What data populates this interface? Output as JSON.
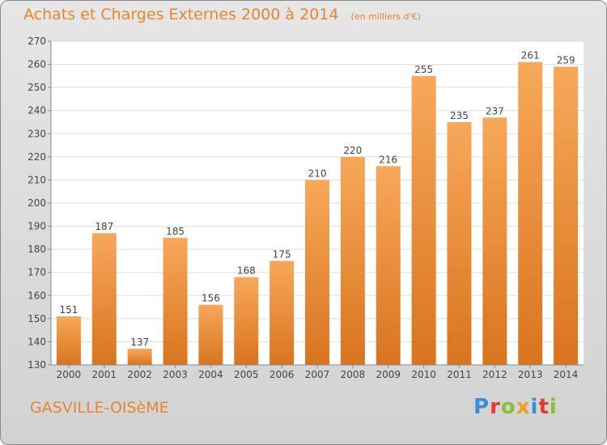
{
  "title": "Achats et Charges Externes 2000 à 2014",
  "unit_note": "(en milliers d'€)",
  "place_name": "GASVILLE-OISèME",
  "logo": {
    "letters": [
      {
        "ch": "P",
        "color": "#3a8fd6"
      },
      {
        "ch": "r",
        "color": "#e83a2b"
      },
      {
        "ch": "o",
        "color": "#8cbf2f"
      },
      {
        "ch": "x",
        "color": "#f0a020"
      },
      {
        "ch": "i",
        "color": "#3a8fd6"
      },
      {
        "ch": "t",
        "color": "#e83a2b"
      },
      {
        "ch": "i",
        "color": "#8cbf2f"
      }
    ]
  },
  "colors": {
    "bar_light": "#f7a85a",
    "bar_dark": "#d9741e",
    "accent_text": "#e6862e",
    "plot_bg": "#ffffff",
    "grid": "#dddddd"
  },
  "chart_data": {
    "type": "bar",
    "categories": [
      "2000",
      "2001",
      "2002",
      "2003",
      "2004",
      "2005",
      "2006",
      "2007",
      "2008",
      "2009",
      "2010",
      "2011",
      "2012",
      "2013",
      "2014"
    ],
    "values": [
      151,
      187,
      137,
      185,
      156,
      168,
      175,
      210,
      220,
      216,
      255,
      235,
      237,
      261,
      259
    ],
    "ylim": [
      130,
      270
    ],
    "yticks": [
      130,
      140,
      150,
      160,
      170,
      180,
      190,
      200,
      210,
      220,
      230,
      240,
      250,
      260,
      270
    ],
    "grid": true,
    "legend": "none",
    "data_labels": true
  }
}
